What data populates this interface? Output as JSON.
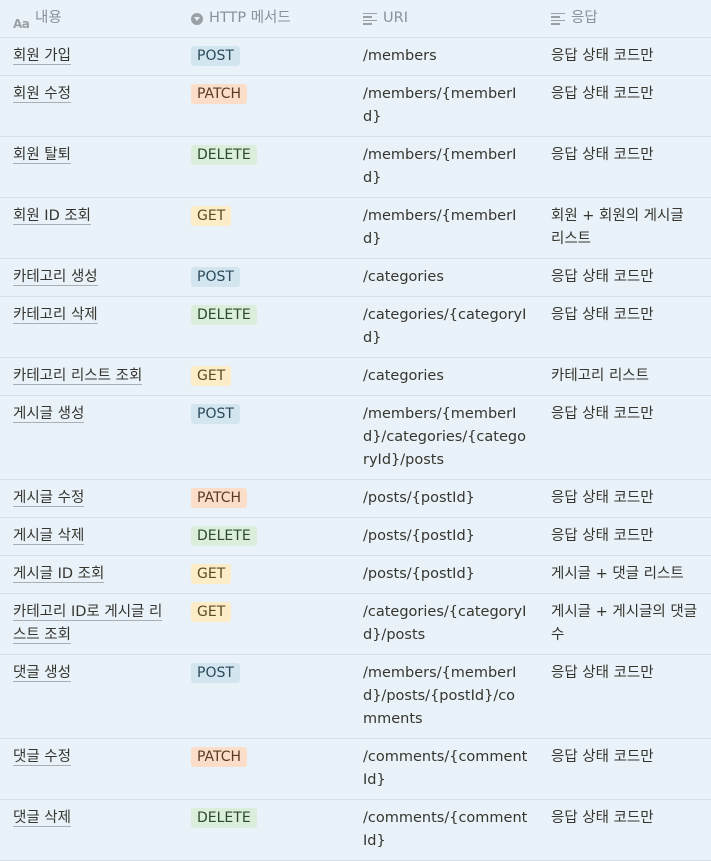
{
  "headers": {
    "name": "내용",
    "method": "HTTP 메서드",
    "uri": "URI",
    "response": "응답",
    "name_icon": "text-property-icon",
    "method_icon": "select-property-icon",
    "uri_icon": "text-lines-icon",
    "response_icon": "text-lines-icon"
  },
  "rows": [
    {
      "name": "회원 가입",
      "method": "POST",
      "uri": "/members",
      "response": "응답 상태 코드만"
    },
    {
      "name": "회원 수정",
      "method": "PATCH",
      "uri": "/members/{memberId}",
      "response": "응답 상태 코드만"
    },
    {
      "name": "회원 탈퇴",
      "method": "DELETE",
      "uri": "/members/{memberId}",
      "response": "응답 상태 코드만"
    },
    {
      "name": "회원 ID 조회",
      "method": "GET",
      "uri": "/members/{memberId}",
      "response": "회원 + 회원의 게시글 리스트"
    },
    {
      "name": "카테고리 생성",
      "method": "POST",
      "uri": "/categories",
      "response": "응답 상태 코드만"
    },
    {
      "name": "카테고리 삭제",
      "method": "DELETE",
      "uri": "/categories/{categoryId}",
      "response": "응답 상태 코드만"
    },
    {
      "name": "카테고리 리스트 조회",
      "method": "GET",
      "uri": "/categories",
      "response": "카테고리 리스트"
    },
    {
      "name": "게시글 생성",
      "method": "POST",
      "uri": "/members/{memberId}/categories/{categoryId}/posts",
      "response": "응답 상태 코드만"
    },
    {
      "name": "게시글 수정",
      "method": "PATCH",
      "uri": "/posts/{postId}",
      "response": "응답 상태 코드만"
    },
    {
      "name": "게시글 삭제",
      "method": "DELETE",
      "uri": "/posts/{postId}",
      "response": "응답 상태 코드만"
    },
    {
      "name": "게시글 ID 조회",
      "method": "GET",
      "uri": "/posts/{postId}",
      "response": "게시글 + 댓글 리스트"
    },
    {
      "name": "카테고리 ID로 게시글 리스트 조회",
      "method": "GET",
      "uri": "/categories/{categoryId}/posts",
      "response": "게시글 + 게시글의 댓글 수"
    },
    {
      "name": "댓글 생성",
      "method": "POST",
      "uri": "/members/{memberId}/posts/{postId}/comments",
      "response": "응답 상태 코드만"
    },
    {
      "name": "댓글 수정",
      "method": "PATCH",
      "uri": "/comments/{commentId}",
      "response": "응답 상태 코드만"
    },
    {
      "name": "댓글 삭제",
      "method": "DELETE",
      "uri": "/comments/{commentId}",
      "response": "응답 상태 코드만"
    }
  ]
}
